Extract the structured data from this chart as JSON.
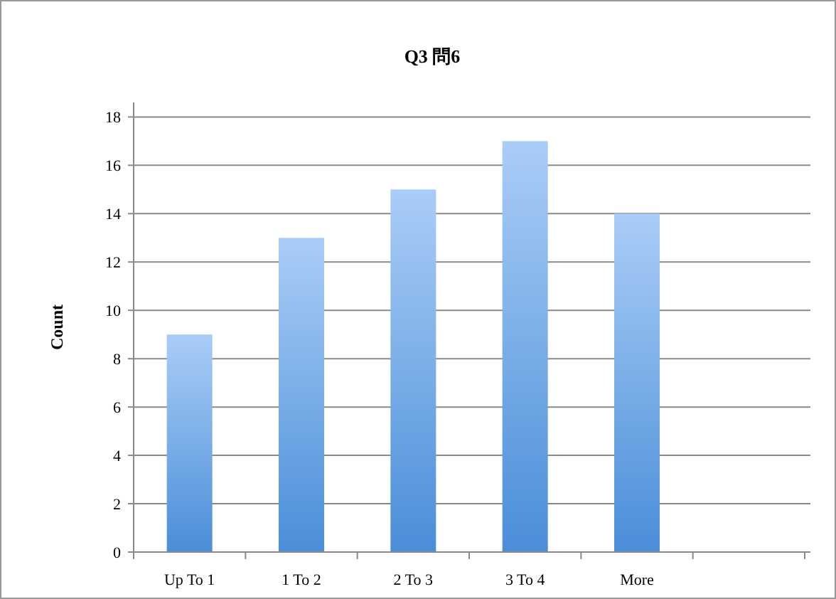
{
  "chart_data": {
    "type": "bar",
    "title": "Q3 問6",
    "ylabel": "Count",
    "categories": [
      "Up To 1",
      "1 To 2",
      "2 To 3",
      "3 To 4",
      "More",
      null
    ],
    "values": [
      9,
      13,
      15,
      17,
      14,
      null
    ],
    "color": "#4a8ed8",
    "ylim": [
      0,
      18.6
    ],
    "yticks": [
      0,
      2,
      4,
      6,
      8,
      10,
      12,
      14,
      16,
      18
    ],
    "grid": "y"
  }
}
